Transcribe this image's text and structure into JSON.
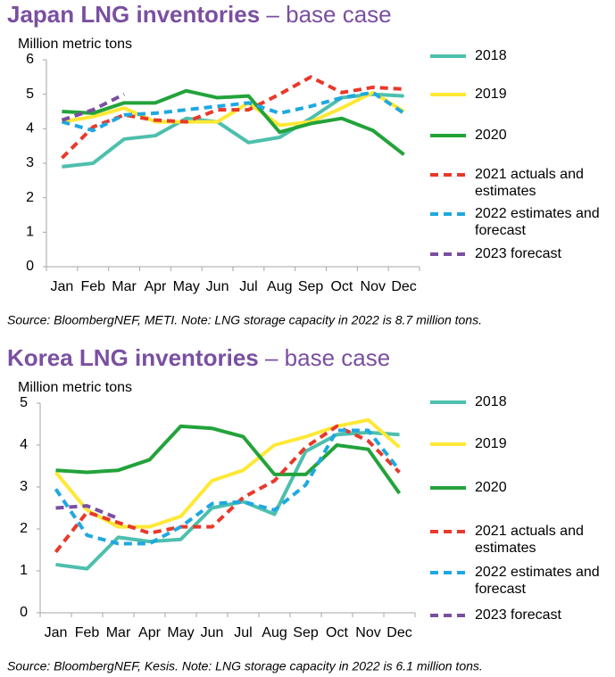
{
  "chart_data": [
    {
      "type": "line",
      "title": "Japan LNG inventories",
      "subtitle": "– base case",
      "ylabel": "Million metric tons",
      "note": "Source: BloombergNEF, METI. Note: LNG storage capacity in 2022 is 8.7 million tons.",
      "categories": [
        "Jan",
        "Feb",
        "Mar",
        "Apr",
        "May",
        "Jun",
        "Jul",
        "Aug",
        "Sep",
        "Oct",
        "Nov",
        "Dec"
      ],
      "ylim": [
        0,
        6
      ],
      "yticks": [
        0,
        1,
        2,
        3,
        4,
        5,
        6
      ],
      "series": [
        {
          "name": "2018",
          "color": "#4dbfad",
          "dashed": false,
          "values": [
            2.9,
            3.0,
            3.7,
            3.8,
            4.3,
            4.2,
            3.6,
            3.75,
            4.3,
            4.9,
            5.0,
            4.95
          ]
        },
        {
          "name": "2019",
          "color": "#ffe835",
          "dashed": false,
          "values": [
            4.2,
            4.35,
            4.6,
            4.2,
            4.2,
            4.2,
            4.75,
            4.1,
            4.2,
            4.6,
            5.05,
            4.5
          ]
        },
        {
          "name": "2020",
          "color": "#22a33a",
          "dashed": false,
          "values": [
            4.5,
            4.45,
            4.75,
            4.75,
            5.1,
            4.9,
            4.95,
            3.9,
            4.15,
            4.3,
            3.95,
            3.25
          ]
        },
        {
          "name": "2021 actuals and estimates",
          "color": "#e8392a",
          "dashed": true,
          "values": [
            3.15,
            4.05,
            4.4,
            4.25,
            4.2,
            4.55,
            4.55,
            5.0,
            5.5,
            5.05,
            5.2,
            5.15
          ]
        },
        {
          "name": "2022 estimates and forecast",
          "color": "#1fa8e0",
          "dashed": true,
          "values": [
            4.2,
            3.95,
            4.4,
            4.45,
            4.55,
            4.65,
            4.75,
            4.45,
            4.65,
            4.9,
            5.05,
            4.45
          ]
        },
        {
          "name": "2023 forecast",
          "color": "#7a4fa0",
          "dashed": true,
          "values": [
            4.25,
            4.55,
            5.0,
            null,
            null,
            null,
            null,
            null,
            null,
            null,
            null,
            null
          ]
        }
      ]
    },
    {
      "type": "line",
      "title": "Korea LNG inventories",
      "subtitle": "– base case",
      "ylabel": "Million metric tons",
      "note": "Source: BloombergNEF, Kesis. Note: LNG storage capacity in 2022 is 6.1 million tons.",
      "categories": [
        "Jan",
        "Feb",
        "Mar",
        "Apr",
        "May",
        "Jun",
        "Jul",
        "Aug",
        "Sep",
        "Oct",
        "Nov",
        "Dec"
      ],
      "ylim": [
        0,
        5
      ],
      "yticks": [
        0,
        1,
        2,
        3,
        4,
        5
      ],
      "series": [
        {
          "name": "2018",
          "color": "#4dbfad",
          "dashed": false,
          "values": [
            1.15,
            1.05,
            1.8,
            1.7,
            1.75,
            2.5,
            2.65,
            2.35,
            3.85,
            4.25,
            4.3,
            4.25
          ]
        },
        {
          "name": "2019",
          "color": "#ffe835",
          "dashed": false,
          "values": [
            3.35,
            2.45,
            2.05,
            2.05,
            2.3,
            3.15,
            3.4,
            4.0,
            4.2,
            4.45,
            4.6,
            3.95
          ]
        },
        {
          "name": "2020",
          "color": "#22a33a",
          "dashed": false,
          "values": [
            3.4,
            3.35,
            3.4,
            3.65,
            4.45,
            4.4,
            4.2,
            3.3,
            3.3,
            4.0,
            3.9,
            2.85
          ]
        },
        {
          "name": "2021 actuals and estimates",
          "color": "#e8392a",
          "dashed": true,
          "values": [
            1.45,
            2.4,
            2.15,
            1.9,
            2.05,
            2.05,
            2.75,
            3.15,
            3.95,
            4.45,
            4.1,
            3.35
          ]
        },
        {
          "name": "2022 estimates and forecast",
          "color": "#1fa8e0",
          "dashed": true,
          "values": [
            2.95,
            1.85,
            1.65,
            1.65,
            2.05,
            2.6,
            2.65,
            2.45,
            3.05,
            4.35,
            4.35,
            3.4
          ]
        },
        {
          "name": "2023 forecast",
          "color": "#7a4fa0",
          "dashed": true,
          "values": [
            2.5,
            2.55,
            2.25,
            null,
            null,
            null,
            null,
            null,
            null,
            null,
            null,
            null
          ]
        }
      ]
    }
  ]
}
